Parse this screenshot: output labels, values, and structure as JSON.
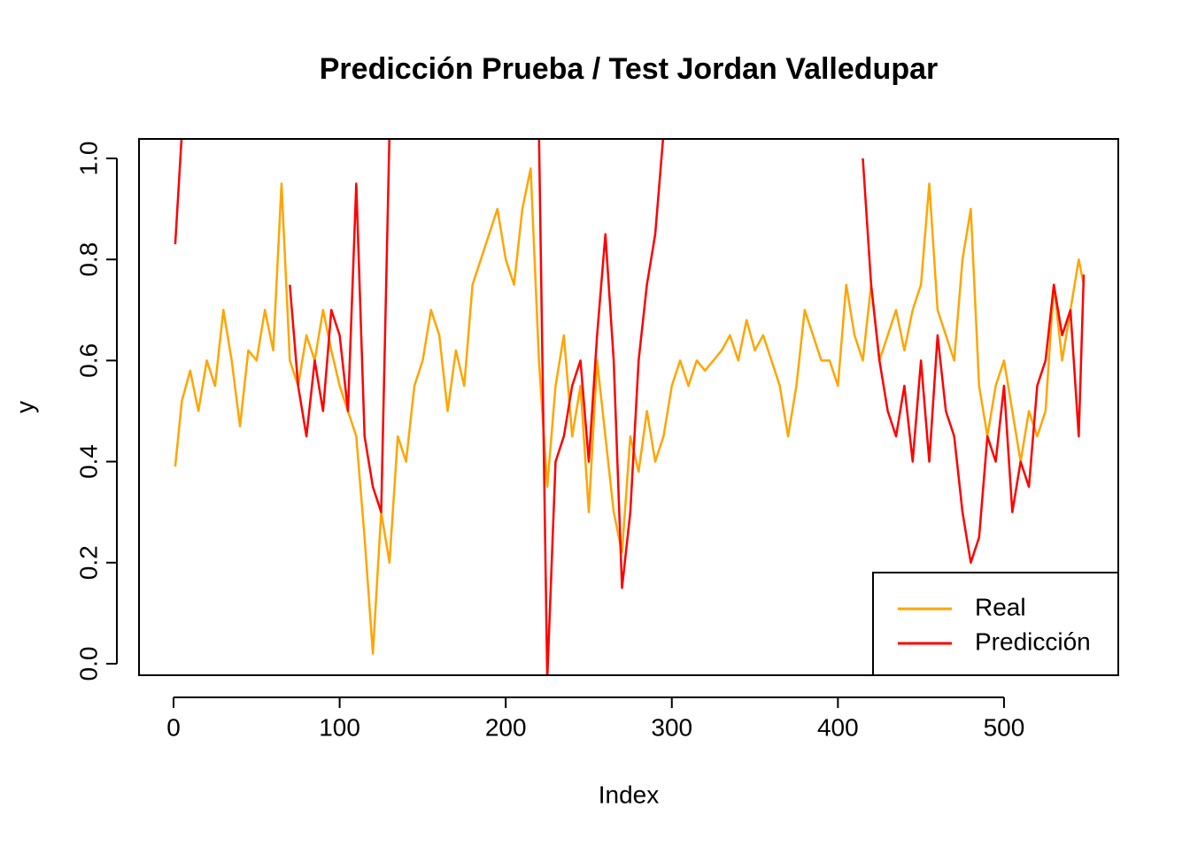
{
  "chart_data": {
    "type": "line",
    "title": "Predicción Prueba / Test Jordan Valledupar",
    "x_label": "Index",
    "y_label": "y",
    "xlim": [
      -20.8,
      568.8
    ],
    "ylim": [
      -0.0228,
      1.0385
    ],
    "xticks": [
      0,
      100,
      200,
      300,
      400,
      500
    ],
    "yticks": [
      {
        "value": 0,
        "label": "0.0"
      },
      0.2,
      0.4,
      0.6,
      0.8,
      {
        "value": 1,
        "label": "1.0"
      }
    ],
    "legend_position": "bottomright",
    "x": [
      1,
      5,
      10,
      15,
      20,
      25,
      30,
      35,
      40,
      45,
      50,
      55,
      60,
      65,
      70,
      75,
      80,
      85,
      90,
      95,
      100,
      105,
      110,
      115,
      120,
      125,
      130,
      135,
      140,
      145,
      150,
      155,
      160,
      165,
      170,
      175,
      180,
      185,
      190,
      195,
      200,
      205,
      210,
      215,
      220,
      225,
      230,
      235,
      240,
      245,
      250,
      255,
      260,
      265,
      270,
      275,
      280,
      285,
      290,
      295,
      300,
      305,
      310,
      315,
      320,
      325,
      330,
      335,
      340,
      345,
      350,
      355,
      360,
      365,
      370,
      375,
      380,
      385,
      390,
      395,
      400,
      405,
      410,
      415,
      420,
      425,
      430,
      435,
      440,
      445,
      450,
      455,
      460,
      465,
      470,
      475,
      480,
      485,
      490,
      495,
      500,
      505,
      510,
      515,
      520,
      525,
      530,
      535,
      540,
      545,
      548
    ],
    "series": [
      {
        "name": "Real",
        "color": "#FFA500",
        "values": [
          0.39,
          0.52,
          0.58,
          0.5,
          0.6,
          0.55,
          0.7,
          0.6,
          0.47,
          0.62,
          0.6,
          0.7,
          0.62,
          0.95,
          0.6,
          0.55,
          0.65,
          0.6,
          0.7,
          0.62,
          0.55,
          0.5,
          0.45,
          0.25,
          0.02,
          0.3,
          0.2,
          0.45,
          0.4,
          0.55,
          0.6,
          0.7,
          0.65,
          0.5,
          0.62,
          0.55,
          0.75,
          0.8,
          0.85,
          0.9,
          0.8,
          0.75,
          0.9,
          0.98,
          0.6,
          0.35,
          0.55,
          0.65,
          0.45,
          0.55,
          0.3,
          0.6,
          0.45,
          0.3,
          0.22,
          0.45,
          0.38,
          0.5,
          0.4,
          0.45,
          0.55,
          0.6,
          0.55,
          0.6,
          0.58,
          0.6,
          0.62,
          0.65,
          0.6,
          0.68,
          0.62,
          0.65,
          0.6,
          0.55,
          0.45,
          0.55,
          0.7,
          0.65,
          0.6,
          0.6,
          0.55,
          0.75,
          0.65,
          0.6,
          0.75,
          0.6,
          0.65,
          0.7,
          0.62,
          0.7,
          0.75,
          0.95,
          0.7,
          0.65,
          0.6,
          0.8,
          0.9,
          0.55,
          0.45,
          0.55,
          0.6,
          0.5,
          0.4,
          0.5,
          0.45,
          0.5,
          0.75,
          0.6,
          0.7,
          0.8,
          0.75
        ]
      },
      {
        "name": "Predicción",
        "color": "#FF0000",
        "values": [
          0.83,
          1.05,
          null,
          null,
          null,
          null,
          null,
          null,
          null,
          null,
          null,
          null,
          null,
          null,
          0.75,
          0.55,
          0.45,
          0.6,
          0.5,
          0.7,
          0.65,
          0.5,
          0.95,
          0.45,
          0.35,
          0.3,
          1.05,
          null,
          null,
          null,
          null,
          null,
          null,
          null,
          null,
          null,
          null,
          null,
          null,
          null,
          null,
          null,
          null,
          null,
          1.05,
          -0.03,
          0.4,
          0.45,
          0.55,
          0.6,
          0.4,
          0.65,
          0.85,
          0.6,
          0.15,
          0.3,
          0.6,
          0.75,
          0.85,
          1.05,
          null,
          null,
          null,
          null,
          null,
          null,
          null,
          null,
          null,
          null,
          null,
          null,
          null,
          null,
          null,
          null,
          null,
          null,
          null,
          null,
          null,
          null,
          null,
          1.0,
          0.75,
          0.6,
          0.5,
          0.45,
          0.55,
          0.4,
          0.6,
          0.4,
          0.65,
          0.5,
          0.45,
          0.3,
          0.2,
          0.25,
          0.45,
          0.4,
          0.55,
          0.3,
          0.4,
          0.35,
          0.55,
          0.6,
          0.75,
          0.65,
          0.7,
          0.45,
          0.77
        ]
      }
    ]
  }
}
